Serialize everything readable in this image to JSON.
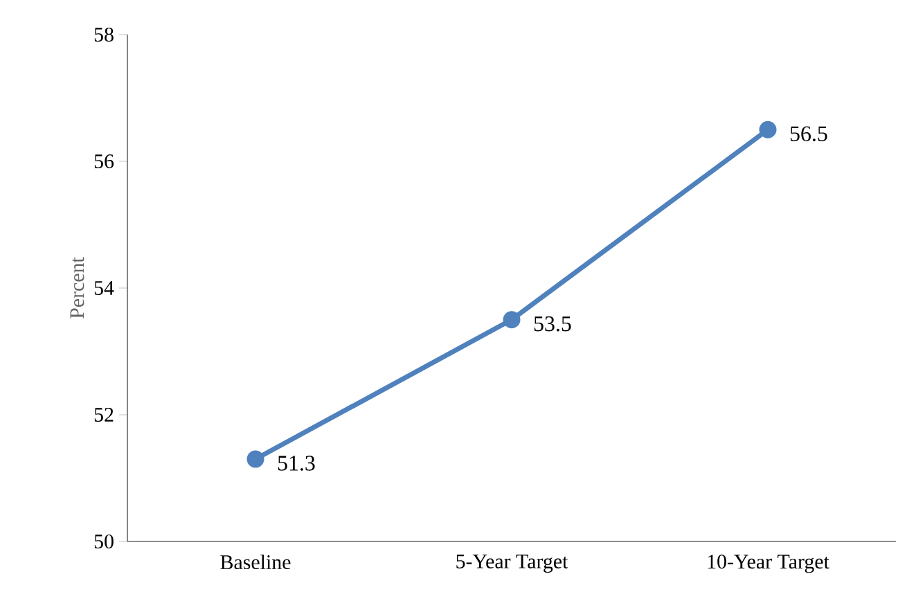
{
  "chart_data": {
    "type": "line",
    "ylabel": "Percent",
    "categories": [
      "Baseline",
      "5-Year Target",
      "10-Year Target"
    ],
    "series": [
      {
        "color": "#4f81bd",
        "values": [
          51.3,
          53.5,
          56.5
        ]
      }
    ],
    "ylim": [
      50,
      58
    ],
    "yticks": [
      50,
      52,
      54,
      56,
      58
    ],
    "data_labels": true,
    "grid": false,
    "marker": "circle",
    "line_style": "solid"
  }
}
